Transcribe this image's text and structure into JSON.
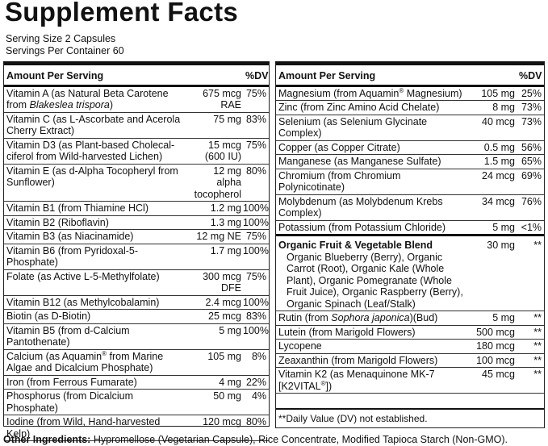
{
  "title": "Supplement Facts",
  "serving_size": "Serving Size 2 Capsules",
  "servings_per_container": "Servings Per Container 60",
  "left": {
    "header": {
      "name": "Amount Per Serving",
      "dv": "%DV"
    },
    "rows": [
      {
        "name": [
          {
            "text": "Vitamin A (as Natural Beta Carotene from "
          },
          {
            "text": "Blakeslea trispora",
            "italic": true
          },
          {
            "text": ")"
          }
        ],
        "amount": "675 mcg RAE",
        "dv": "75%"
      },
      {
        "name": "Vitamin C (as L-Ascorbate and Acerola Cherry Extract)",
        "amount": "75 mg",
        "dv": "83%"
      },
      {
        "name": "Vitamin D3 (as Plant-based Cholecal­ciferol from Wild-harvested Lichen)",
        "amount": "15 mcg (600 IU)",
        "dv": "75%"
      },
      {
        "name": "Vitamin E (as d-Alpha Tocopheryl from Sunflower)",
        "amount": "12 mg alpha tocopherol",
        "dv": "80%"
      },
      {
        "name": "Vitamin B1 (from Thiamine HCl)",
        "amount": "1.2 mg",
        "dv": "100%"
      },
      {
        "name": "Vitamin B2 (Riboflavin)",
        "amount": "1.3 mg",
        "dv": "100%"
      },
      {
        "name": "Vitamin B3 (as Niacinamide)",
        "amount": "12 mg NE",
        "dv": "75%"
      },
      {
        "name": "Vitamin B6 (from Pyridoxal-5-Phosphate)",
        "amount": "1.7 mg",
        "dv": "100%"
      },
      {
        "name": "Folate (as Active L-5-Methylfolate)",
        "amount": "300 mcg DFE",
        "dv": "75%"
      },
      {
        "name": "Vitamin B12 (as Methylcobalamin)",
        "amount": "2.4 mcg",
        "dv": "100%"
      },
      {
        "name": "Biotin (as D-Biotin)",
        "amount": "25 mcg",
        "dv": "83%"
      },
      {
        "name": "Vitamin B5 (from d-Calcium Pantothenate)",
        "amount": "5 mg",
        "dv": "100%"
      },
      {
        "name": [
          {
            "text": "Calcium (as Aquamin"
          },
          {
            "text": "®",
            "sup": true
          },
          {
            "text": " from Marine Algae and Dicalcium Phosphate)"
          }
        ],
        "amount": "105 mg",
        "dv": "8%"
      },
      {
        "name": "Iron (from Ferrous Fumarate)",
        "amount": "4 mg",
        "dv": "22%"
      },
      {
        "name": "Phosphorus (from Dicalcium Phosphate)",
        "amount": "50 mg",
        "dv": "4%"
      },
      {
        "name": "Iodine (from Wild, Hand-harvested Kelp)",
        "amount": "120 mcg",
        "dv": "80%"
      }
    ]
  },
  "right": {
    "header": {
      "name": "Amount Per Serving",
      "dv": "%DV"
    },
    "rows": [
      {
        "name": [
          {
            "text": "Magnesium (from Aquamin"
          },
          {
            "text": "®",
            "sup": true
          },
          {
            "text": " Magnesium)"
          }
        ],
        "amount": "105 mg",
        "dv": "25%"
      },
      {
        "name": "Zinc (from Zinc Amino Acid Chelate)",
        "amount": "8 mg",
        "dv": "73%"
      },
      {
        "name": "Selenium (as Selenium Glycinate Complex)",
        "amount": "40 mcg",
        "dv": "73%"
      },
      {
        "name": "Copper (as Copper Citrate)",
        "amount": "0.5 mg",
        "dv": "56%"
      },
      {
        "name": "Manganese (as Manganese Sulfate)",
        "amount": "1.5 mg",
        "dv": "65%"
      },
      {
        "name": "Chromium (from Chromium Polynicotinate)",
        "amount": "24 mcg",
        "dv": "69%"
      },
      {
        "name": "Molybdenum (as Molybdenum Krebs Complex)",
        "amount": "34 mcg",
        "dv": "76%"
      },
      {
        "name": "Potassium (from Potassium Chloride)",
        "amount": "5 mg",
        "dv": "<1%"
      }
    ],
    "blend": {
      "name": "Organic Fruit & Vegetable Blend",
      "amount": "30 mg",
      "dv": "**",
      "ingredients": "Organic Blueberry (Berry), Organic Carrot (Root), Organic Kale (Whole Plant), Organic Pomegranate (Whole Fruit Juice), Organic Raspberry (Berry), Organic Spinach (Leaf/Stalk)"
    },
    "rows2": [
      {
        "name": [
          {
            "text": "Rutin (from "
          },
          {
            "text": "Sophora japonica",
            "italic": true
          },
          {
            "text": ")(Bud)"
          }
        ],
        "amount": "5 mg",
        "dv": "**"
      },
      {
        "name": "Lutein (from Marigold Flowers)",
        "amount": "500 mcg",
        "dv": "**"
      },
      {
        "name": "Lycopene",
        "amount": "180 mcg",
        "dv": "**"
      },
      {
        "name": "Zeaxanthin (from Marigold Flowers)",
        "amount": "100 mcg",
        "dv": "**"
      },
      {
        "name": [
          {
            "text": "Vitamin K2 (as Menaquinone MK-7 [K2VITAL"
          },
          {
            "text": "®",
            "sup": true
          },
          {
            "text": "])"
          }
        ],
        "amount": "45 mcg",
        "dv": "**"
      }
    ],
    "footnote": "**Daily Value (DV) not established."
  },
  "other_ingredients": {
    "label": "Other Ingredients:",
    "text": " Hypromellose (Vegetarian Capsule), Rice Concentrate, Modified Tapioca Starch (Non-GMO)."
  }
}
